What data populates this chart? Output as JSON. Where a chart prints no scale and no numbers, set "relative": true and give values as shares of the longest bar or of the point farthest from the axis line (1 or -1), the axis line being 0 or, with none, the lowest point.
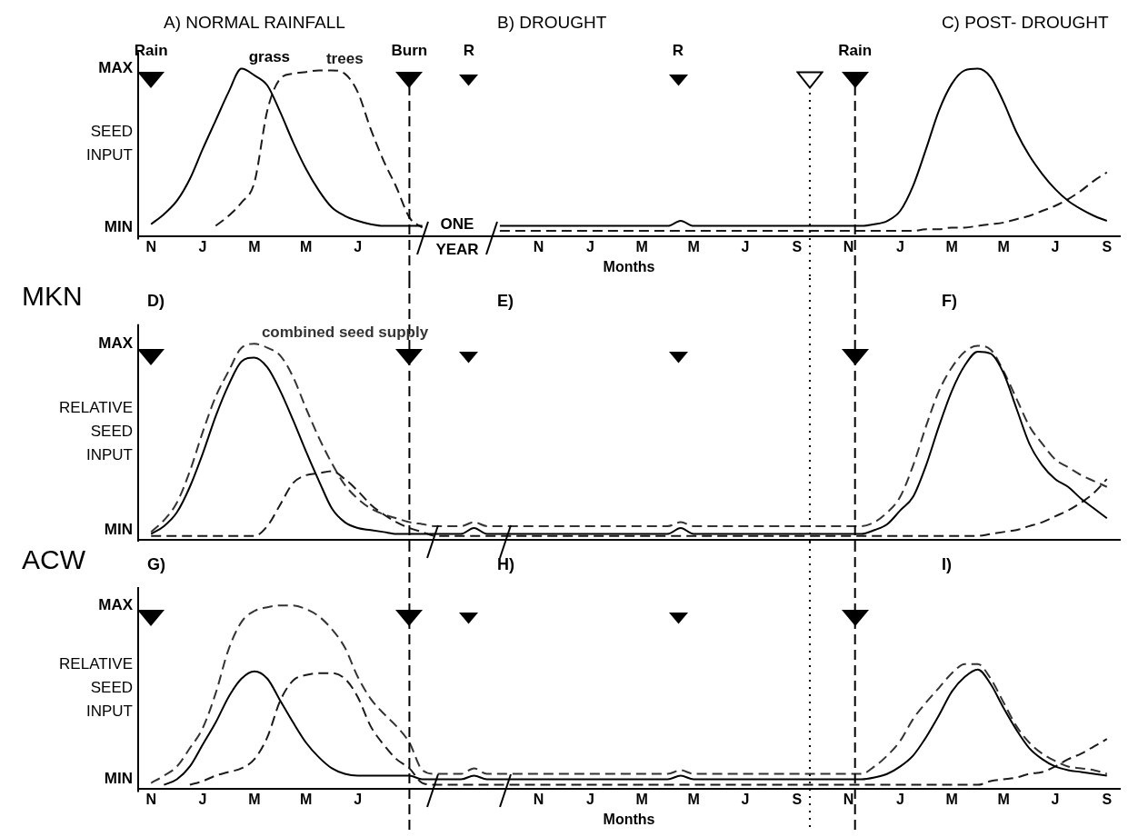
{
  "chart_data": [
    {
      "type": "line",
      "title": "A) NORMAL RAINFALL",
      "ylabel": "SEED INPUT",
      "xlabel": "Months",
      "relative": true,
      "grid": false,
      "categories": [
        null,
        "N",
        null,
        null,
        null,
        "J",
        null,
        null,
        null,
        "M",
        null,
        null,
        null,
        "M",
        null,
        null,
        null,
        "J",
        null,
        null,
        null,
        null,
        null,
        null,
        null,
        null,
        null,
        null,
        null,
        null,
        null,
        "N",
        null,
        null,
        null,
        "J",
        null,
        null,
        null,
        "M",
        null,
        null,
        null,
        "M",
        null,
        null,
        null,
        "J",
        null,
        null,
        null,
        "S",
        null,
        null,
        null,
        "N",
        null,
        null,
        null,
        "J",
        null,
        null,
        null,
        "M",
        null,
        null,
        null,
        "M",
        null,
        null,
        null,
        "J",
        null,
        null,
        null,
        "S",
        null
      ],
      "series": [
        {
          "name": "grass",
          "color": "#000000",
          "line_style": "solid",
          "values": [
            null,
            0.07,
            0.13,
            0.21,
            0.34,
            0.52,
            0.69,
            0.86,
            1.0,
            0.96,
            0.9,
            0.74,
            0.56,
            0.4,
            0.27,
            0.17,
            0.12,
            0.09,
            0.07,
            0.06,
            0.06,
            0.06,
            0.06,
            null,
            null,
            null,
            null,
            null,
            0.06,
            0.06,
            0.06,
            0.06,
            0.06,
            0.06,
            0.06,
            0.06,
            0.06,
            0.06,
            0.06,
            0.06,
            0.06,
            0.06,
            0.09,
            0.06,
            0.06,
            0.06,
            0.06,
            0.06,
            0.06,
            0.06,
            0.06,
            0.06,
            0.06,
            0.06,
            0.06,
            0.06,
            0.06,
            0.07,
            0.09,
            0.15,
            0.3,
            0.52,
            0.75,
            0.91,
            0.99,
            1.0,
            0.95,
            0.8,
            0.62,
            0.48,
            0.37,
            0.28,
            0.21,
            0.16,
            0.12,
            0.09,
            null
          ]
        },
        {
          "name": "trees",
          "color": "#1a1a1a",
          "line_style": "dashed",
          "values": [
            null,
            null,
            null,
            null,
            null,
            null,
            0.06,
            0.12,
            0.2,
            0.32,
            0.75,
            0.94,
            0.97,
            0.98,
            0.99,
            0.99,
            0.97,
            0.86,
            0.64,
            0.45,
            0.29,
            0.11,
            0.05,
            null,
            null,
            null,
            null,
            null,
            0.03,
            0.03,
            0.03,
            0.03,
            0.03,
            0.03,
            0.03,
            0.03,
            0.03,
            0.03,
            0.03,
            0.03,
            0.03,
            0.03,
            0.03,
            0.03,
            0.03,
            0.03,
            0.03,
            0.03,
            0.03,
            0.03,
            0.03,
            0.03,
            0.03,
            0.03,
            0.03,
            0.03,
            0.03,
            0.03,
            0.03,
            0.03,
            0.03,
            0.04,
            0.04,
            0.05,
            0.05,
            0.06,
            0.07,
            0.08,
            0.1,
            0.12,
            0.15,
            0.18,
            0.22,
            0.27,
            0.33,
            0.38,
            null
          ]
        }
      ],
      "annotations": [
        "MAX",
        "MIN",
        "B) DROUGHT",
        "C) POST- DROUGHT",
        "Rain",
        "R",
        "R",
        "ONE YEAR",
        "Burn",
        "Rain"
      ]
    },
    {
      "type": "line",
      "title": "MKN",
      "subtitle": "D)",
      "ylabel": "RELATIVE SEED INPUT",
      "relative": true,
      "grid": false,
      "tick_labels": false,
      "categories": [
        null,
        null,
        null,
        null,
        null,
        null,
        null,
        null,
        null,
        null,
        null,
        null,
        null,
        null,
        null,
        null,
        null,
        null,
        null,
        null,
        null,
        null,
        null,
        null,
        null,
        null,
        null,
        null,
        null,
        null,
        null,
        null,
        null,
        null,
        null,
        null,
        null,
        null,
        null,
        null,
        null,
        null,
        null,
        null,
        null,
        null,
        null,
        null,
        null,
        null,
        null,
        null,
        null,
        null,
        null,
        null,
        null,
        null,
        null,
        null,
        null,
        null,
        null,
        null,
        null,
        null,
        null,
        null,
        null,
        null,
        null,
        null,
        null,
        null,
        null,
        null,
        null
      ],
      "series": [
        {
          "color": "#000000",
          "line_style": "solid",
          "values": [
            null,
            0.03,
            0.07,
            0.14,
            0.27,
            0.44,
            0.63,
            0.79,
            0.91,
            0.93,
            0.88,
            0.76,
            0.61,
            0.45,
            0.3,
            0.16,
            0.09,
            0.06,
            0.05,
            0.04,
            0.03,
            0.03,
            0.03,
            0.03,
            0.03,
            0.03,
            0.06,
            0.03,
            0.03,
            0.03,
            0.03,
            0.03,
            0.03,
            0.03,
            0.03,
            0.03,
            0.03,
            0.03,
            0.03,
            0.03,
            0.03,
            0.03,
            0.06,
            0.03,
            0.03,
            0.03,
            0.03,
            0.03,
            0.03,
            0.03,
            0.03,
            0.03,
            0.03,
            0.03,
            0.03,
            0.03,
            0.03,
            0.05,
            0.08,
            0.15,
            0.22,
            0.38,
            0.58,
            0.76,
            0.89,
            0.96,
            0.95,
            0.85,
            0.67,
            0.49,
            0.38,
            0.31,
            0.27,
            0.21,
            0.16,
            0.11,
            null
          ]
        },
        {
          "color": "#1a1a1a",
          "line_style": "dashed",
          "values": [
            null,
            0.02,
            0.02,
            0.02,
            0.02,
            0.02,
            0.02,
            0.02,
            0.02,
            0.02,
            0.07,
            0.18,
            0.29,
            0.33,
            0.34,
            0.35,
            0.31,
            0.25,
            0.18,
            0.13,
            0.09,
            0.06,
            0.04,
            0.02,
            0.02,
            0.02,
            0.02,
            0.02,
            0.02,
            0.02,
            0.02,
            0.02,
            0.02,
            0.02,
            0.02,
            0.02,
            0.02,
            0.02,
            0.02,
            0.02,
            0.02,
            0.02,
            0.02,
            0.02,
            0.02,
            0.02,
            0.02,
            0.02,
            0.02,
            0.02,
            0.02,
            0.02,
            0.02,
            0.02,
            0.02,
            0.02,
            0.02,
            0.02,
            0.02,
            0.02,
            0.02,
            0.02,
            0.02,
            0.02,
            0.02,
            0.02,
            0.03,
            0.04,
            0.05,
            0.07,
            0.09,
            0.12,
            0.15,
            0.19,
            0.24,
            0.31,
            null
          ]
        },
        {
          "name": "combined seed supply",
          "color": "#333333",
          "line_style": "dashed",
          "values": [
            null,
            0.04,
            0.1,
            0.19,
            0.35,
            0.55,
            0.73,
            0.86,
            0.98,
            1.0,
            0.98,
            0.94,
            0.83,
            0.67,
            0.52,
            0.39,
            0.28,
            0.21,
            0.16,
            0.13,
            0.11,
            0.09,
            0.08,
            0.07,
            0.07,
            0.07,
            0.09,
            0.07,
            0.07,
            0.07,
            0.07,
            0.07,
            0.07,
            0.07,
            0.07,
            0.07,
            0.07,
            0.07,
            0.07,
            0.07,
            0.07,
            0.07,
            0.09,
            0.07,
            0.07,
            0.07,
            0.07,
            0.07,
            0.07,
            0.07,
            0.07,
            0.07,
            0.07,
            0.07,
            0.07,
            0.07,
            0.07,
            0.09,
            0.14,
            0.22,
            0.38,
            0.58,
            0.76,
            0.88,
            0.96,
            0.99,
            0.97,
            0.86,
            0.72,
            0.58,
            0.49,
            0.41,
            0.37,
            0.33,
            0.3,
            0.27,
            null
          ]
        }
      ],
      "annotations": [
        "MAX",
        "MIN",
        "E)",
        "F)"
      ]
    },
    {
      "type": "line",
      "title": "ACW",
      "subtitle": "G)",
      "ylabel": "RELATIVE SEED INPUT",
      "xlabel": "Months",
      "relative": true,
      "grid": false,
      "categories": [
        null,
        "N",
        null,
        null,
        null,
        "J",
        null,
        null,
        null,
        "M",
        null,
        null,
        null,
        "M",
        null,
        null,
        null,
        "J",
        null,
        null,
        null,
        null,
        null,
        null,
        null,
        null,
        null,
        null,
        null,
        null,
        null,
        "N",
        null,
        null,
        null,
        "J",
        null,
        null,
        null,
        "M",
        null,
        null,
        null,
        "M",
        null,
        null,
        null,
        "J",
        null,
        null,
        null,
        "S",
        null,
        null,
        null,
        "N",
        null,
        null,
        null,
        "J",
        null,
        null,
        null,
        "M",
        null,
        null,
        null,
        "M",
        null,
        null,
        null,
        "J",
        null,
        null,
        null,
        "S",
        null
      ],
      "series": [
        {
          "color": "#000000",
          "line_style": "solid",
          "values": [
            null,
            null,
            0.02,
            0.05,
            0.12,
            0.24,
            0.36,
            0.5,
            0.6,
            0.64,
            0.6,
            0.48,
            0.36,
            0.25,
            0.17,
            0.11,
            0.08,
            0.07,
            0.07,
            0.07,
            0.07,
            0.07,
            0.05,
            0.05,
            0.05,
            0.05,
            0.07,
            0.05,
            0.05,
            0.05,
            0.05,
            0.05,
            0.05,
            0.05,
            0.05,
            0.05,
            0.05,
            0.05,
            0.05,
            0.05,
            0.05,
            0.05,
            0.07,
            0.05,
            0.05,
            0.05,
            0.05,
            0.05,
            0.05,
            0.05,
            0.05,
            0.05,
            0.05,
            0.05,
            0.05,
            0.05,
            0.05,
            0.06,
            0.08,
            0.12,
            0.18,
            0.28,
            0.4,
            0.53,
            0.61,
            0.65,
            0.57,
            0.44,
            0.32,
            0.22,
            0.16,
            0.12,
            0.1,
            0.09,
            0.08,
            0.07,
            null
          ]
        },
        {
          "color": "#1a1a1a",
          "line_style": "dashed",
          "values": [
            null,
            null,
            null,
            null,
            0.02,
            0.04,
            0.07,
            0.09,
            0.11,
            0.16,
            0.28,
            0.48,
            0.59,
            0.62,
            0.63,
            0.63,
            0.6,
            0.5,
            0.34,
            0.24,
            0.16,
            0.11,
            0.03,
            0.02,
            0.02,
            0.02,
            0.02,
            0.02,
            0.02,
            0.02,
            0.02,
            0.02,
            0.02,
            0.02,
            0.02,
            0.02,
            0.02,
            0.02,
            0.02,
            0.02,
            0.02,
            0.02,
            0.02,
            0.02,
            0.02,
            0.02,
            0.02,
            0.02,
            0.02,
            0.02,
            0.02,
            0.02,
            0.02,
            0.02,
            0.02,
            0.02,
            0.02,
            0.02,
            0.02,
            0.02,
            0.02,
            0.02,
            0.02,
            0.02,
            0.02,
            0.02,
            0.04,
            0.05,
            0.06,
            0.08,
            0.09,
            0.12,
            0.16,
            0.19,
            0.23,
            0.27,
            null
          ]
        },
        {
          "color": "#333333",
          "line_style": "dashed",
          "values": [
            null,
            0.03,
            0.07,
            0.12,
            0.22,
            0.33,
            0.52,
            0.76,
            0.91,
            0.97,
            0.99,
            1.0,
            1.0,
            0.98,
            0.94,
            0.87,
            0.77,
            0.61,
            0.49,
            0.41,
            0.34,
            0.25,
            0.1,
            0.08,
            0.08,
            0.08,
            0.11,
            0.08,
            0.08,
            0.08,
            0.08,
            0.08,
            0.08,
            0.08,
            0.08,
            0.08,
            0.08,
            0.08,
            0.08,
            0.08,
            0.08,
            0.08,
            0.1,
            0.08,
            0.08,
            0.08,
            0.08,
            0.08,
            0.08,
            0.08,
            0.08,
            0.08,
            0.08,
            0.08,
            0.08,
            0.08,
            0.08,
            0.12,
            0.18,
            0.26,
            0.38,
            0.47,
            0.55,
            0.63,
            0.68,
            0.68,
            0.6,
            0.47,
            0.34,
            0.25,
            0.19,
            0.15,
            0.12,
            0.11,
            0.1,
            0.08,
            null
          ]
        }
      ],
      "annotations": [
        "MAX",
        "MIN",
        "H)",
        "I)"
      ]
    }
  ]
}
